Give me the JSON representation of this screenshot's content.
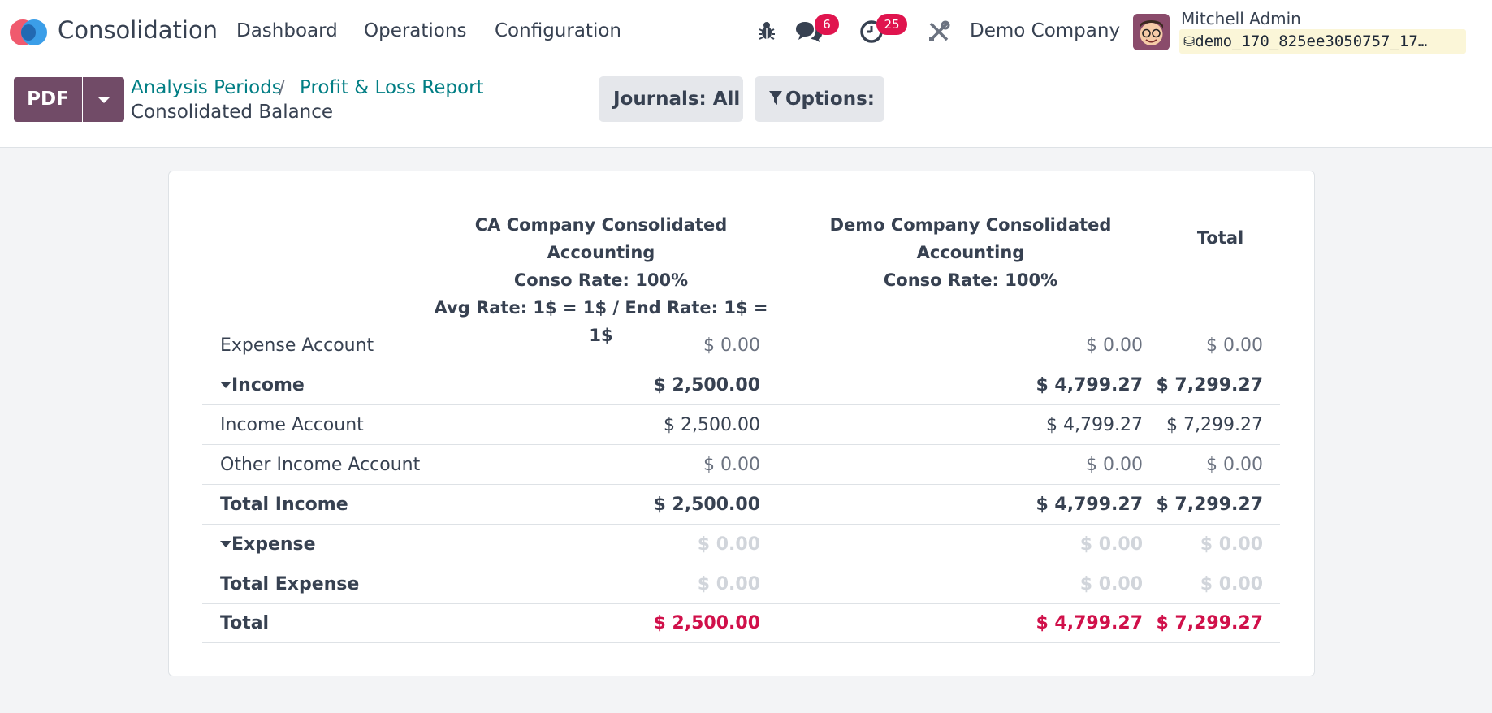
{
  "navbar": {
    "app_name": "Consolidation",
    "menu": [
      "Dashboard",
      "Operations",
      "Configuration"
    ],
    "messages_count": "6",
    "activities_count": "25",
    "company": "Demo Company",
    "user_name": "Mitchell Admin",
    "database": "demo_170_825ee3050757_17…"
  },
  "control": {
    "pdf_label": "PDF",
    "breadcrumbs": [
      "Analysis Periods",
      "Profit & Loss Report"
    ],
    "breadcrumb_sep": "/",
    "current": "Consolidated Balance",
    "journals_label": "Journals: All",
    "options_label": "Options:"
  },
  "report": {
    "columns": [
      {
        "lines": [
          "CA Company Consolidated Accounting",
          "Conso Rate: 100%",
          "Avg Rate: 1$ = 1$ / End Rate: 1$ = 1$"
        ]
      },
      {
        "lines": [
          "Demo Company Consolidated Accounting",
          "Conso Rate: 100%"
        ]
      },
      {
        "lines": [
          "Total"
        ]
      }
    ],
    "rows": [
      {
        "label": "Expense Account",
        "values": [
          "$ 0.00",
          "$ 0.00",
          "$ 0.00"
        ]
      },
      {
        "label": "Income",
        "values": [
          "$ 2,500.00",
          "$ 4,799.27",
          "$ 7,299.27"
        ]
      },
      {
        "label": "Income Account",
        "values": [
          "$ 2,500.00",
          "$ 4,799.27",
          "$ 7,299.27"
        ]
      },
      {
        "label": "Other Income Account",
        "values": [
          "$ 0.00",
          "$ 0.00",
          "$ 0.00"
        ]
      },
      {
        "label": "Total Income",
        "values": [
          "$ 2,500.00",
          "$ 4,799.27",
          "$ 7,299.27"
        ]
      },
      {
        "label": "Expense",
        "values": [
          "$ 0.00",
          "$ 0.00",
          "$ 0.00"
        ]
      },
      {
        "label": "Total Expense",
        "values": [
          "$ 0.00",
          "$ 0.00",
          "$ 0.00"
        ]
      },
      {
        "label": "Total",
        "values": [
          "$ 2,500.00",
          "$ 4,799.27",
          "$ 7,299.27"
        ]
      }
    ]
  },
  "colors": {
    "brand": "#714b67",
    "link": "#017e84",
    "badge": "#e0144e",
    "negative_total": "#d0104a"
  },
  "icons": [
    "bug-icon",
    "chat-icon",
    "clock-icon",
    "tools-icon",
    "database-icon",
    "filter-icon",
    "caret-down-icon"
  ]
}
